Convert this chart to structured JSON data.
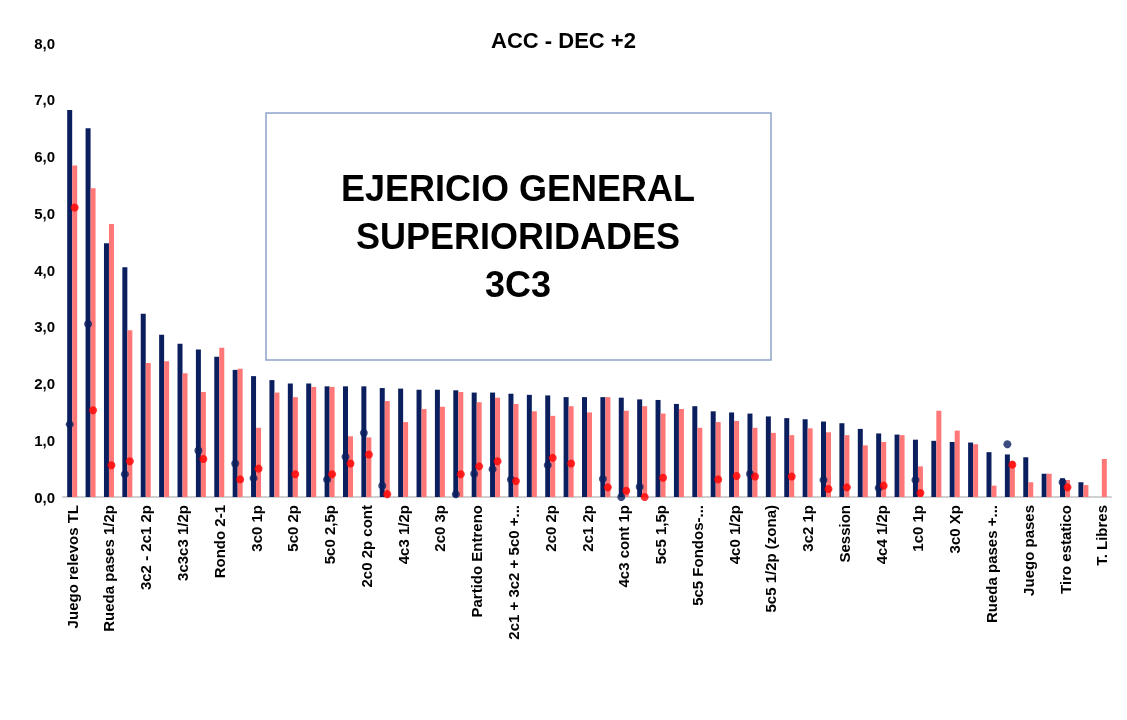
{
  "chart_data": {
    "type": "bar",
    "title": "ACC - DEC +2",
    "annotations": [
      "EJERICIO GENERAL\nSUPERIORIDADES\n3C3"
    ],
    "categories": [
      "Juego relevos TL",
      null,
      "Rueda pases 1/2p",
      null,
      "3c2 - 2c1 2p",
      null,
      "3c3c3 1/2p",
      null,
      "Rondo 2-1",
      null,
      "3c0 1p",
      null,
      "5c0 2p",
      null,
      "5c0 2,5p",
      null,
      "2c0 2p cont",
      null,
      "4c3 1/2p",
      null,
      "2c0 3p",
      null,
      "Partido Entreno",
      null,
      "2c1 + 3c2 + 5c0 +...",
      null,
      "2c0 2p",
      null,
      "2c1 2p",
      null,
      "4c3 cont 1p",
      null,
      "5c5 1,5p",
      null,
      "5c5 Fondos-...",
      null,
      "4c0 1/2p",
      null,
      "5c5 1/2p (zona)",
      null,
      "3c2 1p",
      null,
      "Session",
      null,
      "4c4 1/2p",
      null,
      "1c0 1p",
      null,
      "3c0 Xp",
      null,
      "Rueda pases +...",
      null,
      "Juego pases",
      null,
      "Tiro estatico",
      null,
      "T. Libres"
    ],
    "series": [
      {
        "color": "#0b1f5e",
        "values": [
          6.82,
          6.5,
          4.47,
          4.05,
          3.23,
          2.86,
          2.7,
          2.6,
          2.47,
          2.24,
          2.13,
          2.06,
          2.0,
          2.0,
          1.95,
          1.95,
          1.95,
          1.92,
          1.91,
          1.89,
          1.89,
          1.88,
          1.84,
          1.84,
          1.82,
          1.8,
          1.79,
          1.76,
          1.76,
          1.76,
          1.75,
          1.72,
          1.71,
          1.64,
          1.6,
          1.51,
          1.49,
          1.47,
          1.42,
          1.39,
          1.37,
          1.33,
          1.3,
          1.2,
          1.12,
          1.1,
          1.01,
          0.99,
          0.97,
          0.96,
          0.79,
          0.75,
          0.7,
          0.41,
          0.33,
          0.26,
          null
        ]
      },
      {
        "color": "#ff7777",
        "values": [
          5.84,
          5.44,
          4.81,
          2.94,
          2.36,
          2.39,
          2.18,
          1.85,
          2.63,
          2.26,
          1.22,
          1.84,
          1.76,
          1.94,
          1.94,
          1.07,
          1.05,
          1.69,
          1.32,
          1.55,
          1.59,
          1.85,
          1.67,
          1.75,
          1.64,
          1.51,
          1.43,
          1.6,
          1.49,
          1.76,
          1.52,
          1.6,
          1.47,
          1.55,
          1.22,
          1.32,
          1.34,
          1.22,
          1.13,
          1.09,
          1.21,
          1.14,
          1.09,
          0.91,
          0.97,
          1.09,
          0.54,
          1.52,
          1.17,
          0.93,
          0.2,
          0.63,
          0.26,
          0.41,
          0.3,
          0.21,
          0.67
        ]
      },
      {
        "type": "scatter",
        "color": "#0b1f5e",
        "marker": "circle",
        "values": [
          1.28,
          3.05,
          null,
          0.4,
          null,
          null,
          null,
          0.82,
          null,
          0.59,
          0.33,
          null,
          null,
          null,
          0.31,
          0.71,
          1.13,
          0.2,
          null,
          null,
          null,
          0.05,
          0.41,
          0.49,
          0.31,
          null,
          0.56,
          null,
          null,
          0.32,
          0.0,
          0.18,
          null,
          null,
          null,
          null,
          null,
          0.41,
          null,
          null,
          null,
          0.3,
          null,
          null,
          0.16,
          null,
          0.3,
          null,
          null,
          null,
          null,
          0.93,
          null,
          null,
          0.26,
          null,
          null
        ]
      },
      {
        "type": "scatter",
        "color": "#ff0000",
        "marker": "circle",
        "values": [
          5.1,
          1.53,
          0.56,
          0.63,
          null,
          null,
          null,
          0.67,
          null,
          0.31,
          0.5,
          null,
          0.4,
          null,
          0.4,
          0.59,
          0.75,
          0.05,
          null,
          null,
          null,
          0.4,
          0.54,
          0.63,
          0.28,
          null,
          0.69,
          0.59,
          null,
          0.17,
          0.11,
          0.0,
          0.34,
          null,
          null,
          0.31,
          0.37,
          0.36,
          null,
          0.36,
          null,
          0.14,
          0.17,
          null,
          0.2,
          null,
          0.07,
          null,
          null,
          null,
          null,
          0.57,
          null,
          null,
          0.17,
          null,
          null
        ]
      }
    ],
    "ylim": [
      0,
      8
    ],
    "yticks": [
      {
        "value": 0,
        "label": "0,0"
      },
      {
        "value": 1,
        "label": "1,0"
      },
      {
        "value": 2,
        "label": "2,0"
      },
      {
        "value": 3,
        "label": "3,0"
      },
      {
        "value": 4,
        "label": "4,0"
      },
      {
        "value": 5,
        "label": "5,0"
      },
      {
        "value": 6,
        "label": "6,0"
      },
      {
        "value": 7,
        "label": "7,0"
      },
      {
        "value": 8,
        "label": "8,0"
      }
    ],
    "grid": false
  }
}
